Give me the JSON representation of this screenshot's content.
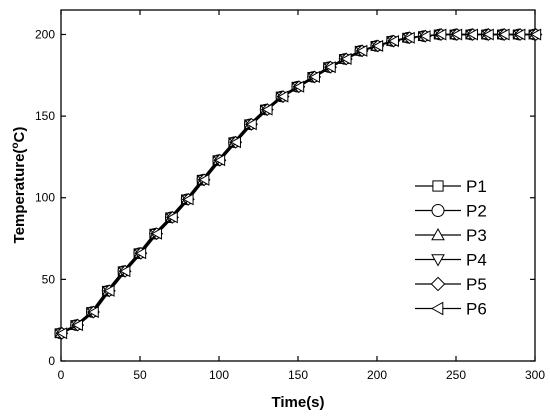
{
  "chart_data": {
    "type": "line",
    "xlabel": "Time(s)",
    "ylabel_main": "Temperature(",
    "ylabel_sup": "o",
    "ylabel_tail": "C)",
    "xlim": [
      0,
      300
    ],
    "ylim": [
      0,
      215
    ],
    "xticks": [
      0,
      50,
      100,
      150,
      200,
      250,
      300
    ],
    "yticks": [
      0,
      50,
      100,
      150,
      200
    ],
    "grid": false,
    "legend_position": "right",
    "x": [
      0,
      10,
      20,
      30,
      40,
      50,
      60,
      70,
      80,
      90,
      100,
      110,
      120,
      130,
      140,
      150,
      160,
      170,
      180,
      190,
      200,
      210,
      220,
      230,
      240,
      250,
      260,
      270,
      280,
      290,
      300
    ],
    "series": [
      {
        "name": "P1",
        "marker": "square",
        "values": [
          17,
          22,
          30,
          43,
          55,
          66,
          78,
          88,
          99,
          111,
          123,
          134,
          145,
          154,
          162,
          168,
          174,
          180,
          185,
          190,
          193,
          196,
          198,
          199,
          200,
          200,
          200,
          200,
          200,
          200,
          200
        ]
      },
      {
        "name": "P2",
        "marker": "circle",
        "values": [
          17,
          22,
          30,
          43,
          55,
          66,
          78,
          88,
          99,
          111,
          123,
          134,
          145,
          154,
          162,
          168,
          174,
          180,
          185,
          190,
          193,
          196,
          198,
          199,
          200,
          200,
          200,
          200,
          200,
          200,
          200
        ]
      },
      {
        "name": "P3",
        "marker": "triangle-up",
        "values": [
          17,
          22,
          30,
          43,
          55,
          66,
          78,
          88,
          99,
          111,
          123,
          134,
          145,
          154,
          162,
          168,
          174,
          180,
          185,
          190,
          193,
          196,
          198,
          199,
          200,
          200,
          200,
          200,
          200,
          200,
          200
        ]
      },
      {
        "name": "P4",
        "marker": "triangle-down",
        "values": [
          17,
          22,
          30,
          43,
          55,
          66,
          78,
          88,
          99,
          111,
          123,
          134,
          145,
          154,
          162,
          168,
          174,
          180,
          185,
          190,
          193,
          196,
          198,
          199,
          200,
          200,
          200,
          200,
          200,
          200,
          200
        ]
      },
      {
        "name": "P5",
        "marker": "diamond",
        "values": [
          17,
          22,
          30,
          43,
          55,
          66,
          78,
          88,
          99,
          111,
          123,
          134,
          145,
          154,
          162,
          168,
          174,
          180,
          185,
          190,
          193,
          196,
          198,
          199,
          200,
          200,
          200,
          200,
          200,
          200,
          200
        ]
      },
      {
        "name": "P6",
        "marker": "triangle-left",
        "values": [
          17,
          22,
          30,
          43,
          55,
          66,
          78,
          88,
          99,
          111,
          123,
          134,
          145,
          154,
          162,
          168,
          174,
          180,
          185,
          190,
          193,
          196,
          198,
          199,
          200,
          200,
          200,
          200,
          200,
          200,
          200
        ]
      }
    ],
    "line_color": "#000000",
    "marker_fill": "#ffffff"
  }
}
